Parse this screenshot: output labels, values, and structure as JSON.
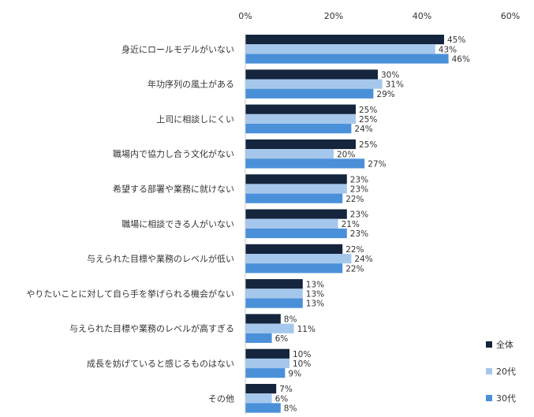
{
  "chart_data": {
    "type": "bar",
    "orientation": "horizontal",
    "title": "",
    "xlabel": "",
    "ylabel": "",
    "xlim": [
      0,
      60
    ],
    "x_ticks": [
      "0%",
      "20%",
      "40%",
      "60%"
    ],
    "x_axis_position": "top",
    "grid": false,
    "legend_position": "bottom-right",
    "value_suffix": "%",
    "categories": [
      "身近にロールモデルがいない",
      "年功序列の風土がある",
      "上司に相談しにくい",
      "職場内で協力し合う文化がない",
      "希望する部署や業務に就けない",
      "職場に相談できる人がいない",
      "与えられた目標や業務のレベルが低い",
      "やりたいことに対して自ら手を挙げられる機会がない",
      "与えられた目標や業務のレベルが高すぎる",
      "成長を妨げていると感じるものはない",
      "その他"
    ],
    "series": [
      {
        "name": "全体",
        "color": "#14253d",
        "values": [
          45,
          30,
          25,
          25,
          23,
          23,
          22,
          13,
          8,
          10,
          7
        ]
      },
      {
        "name": "20代",
        "color": "#a6c7ec",
        "values": [
          43,
          31,
          25,
          20,
          23,
          21,
          24,
          13,
          11,
          10,
          6
        ]
      },
      {
        "name": "30代",
        "color": "#4a90d9",
        "values": [
          46,
          29,
          24,
          27,
          22,
          23,
          22,
          13,
          6,
          9,
          8
        ]
      }
    ]
  }
}
